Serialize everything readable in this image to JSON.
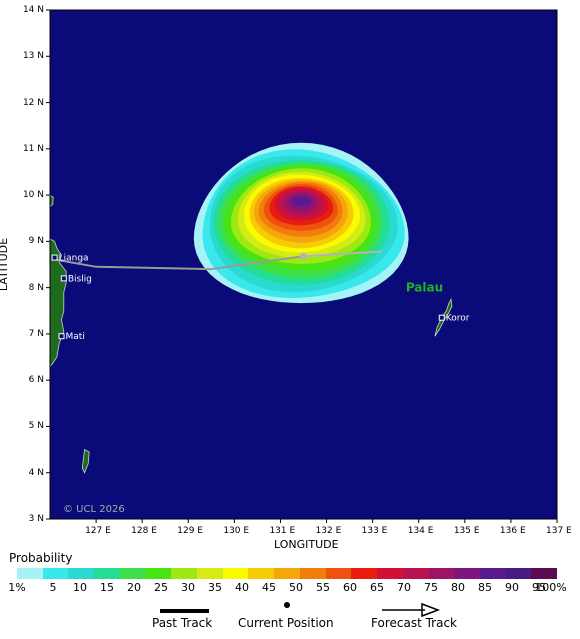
{
  "map": {
    "latitude_axis_label": "LATITUDE",
    "longitude_axis_label": "LONGITUDE",
    "lat_ticks": [
      "14 N",
      "13 N",
      "12 N",
      "11 N",
      "10 N",
      "9 N",
      "8 N",
      "7 N",
      "6 N",
      "5 N",
      "4 N",
      "3 N"
    ],
    "lon_ticks": [
      "127 E",
      "128 E",
      "129 E",
      "130 E",
      "131 E",
      "132 E",
      "133 E",
      "134 E",
      "135 E",
      "136 E",
      "137 E"
    ],
    "places": [
      {
        "name": "Lianga",
        "lat": 8.65,
        "lon": 126.1
      },
      {
        "name": "Bislig",
        "lat": 8.2,
        "lon": 126.3
      },
      {
        "name": "Mati",
        "lat": 6.95,
        "lon": 126.25
      },
      {
        "name": "Koror",
        "lat": 7.35,
        "lon": 134.5
      }
    ],
    "region_label": "Palau",
    "copyright": "© UCL 2026",
    "ocean_color": "#0a0a78",
    "land_color": "#1e6b1e"
  },
  "track": {
    "past": [
      [
        126.15,
        8.6
      ],
      [
        127.0,
        8.45
      ],
      [
        129.5,
        8.4
      ],
      [
        131.5,
        8.68
      ]
    ],
    "current": [
      131.5,
      8.68
    ],
    "forecast": [
      [
        131.5,
        8.68
      ],
      [
        133.2,
        8.78
      ]
    ]
  },
  "legend": {
    "title": "Probability",
    "scale_labels": [
      "1%",
      "5",
      "10",
      "15",
      "20",
      "25",
      "30",
      "35",
      "40",
      "45",
      "50",
      "55",
      "60",
      "65",
      "70",
      "75",
      "80",
      "85",
      "90",
      "95",
      "100%"
    ],
    "colors": [
      "#a6f3f5",
      "#39e8ec",
      "#2ad9d0",
      "#22dd93",
      "#3ddf4a",
      "#47e414",
      "#9ee813",
      "#d5eb14",
      "#fafa00",
      "#f7ca06",
      "#f4a60a",
      "#f17d0c",
      "#ef520f",
      "#e81d0e",
      "#d21035",
      "#b8124f",
      "#9d1466",
      "#7e167d",
      "#5a198e",
      "#481b80",
      "#5b0b52"
    ],
    "past_track_label": "Past Track",
    "current_position_label": "Current Position",
    "forecast_track_label": "Forecast Track"
  }
}
